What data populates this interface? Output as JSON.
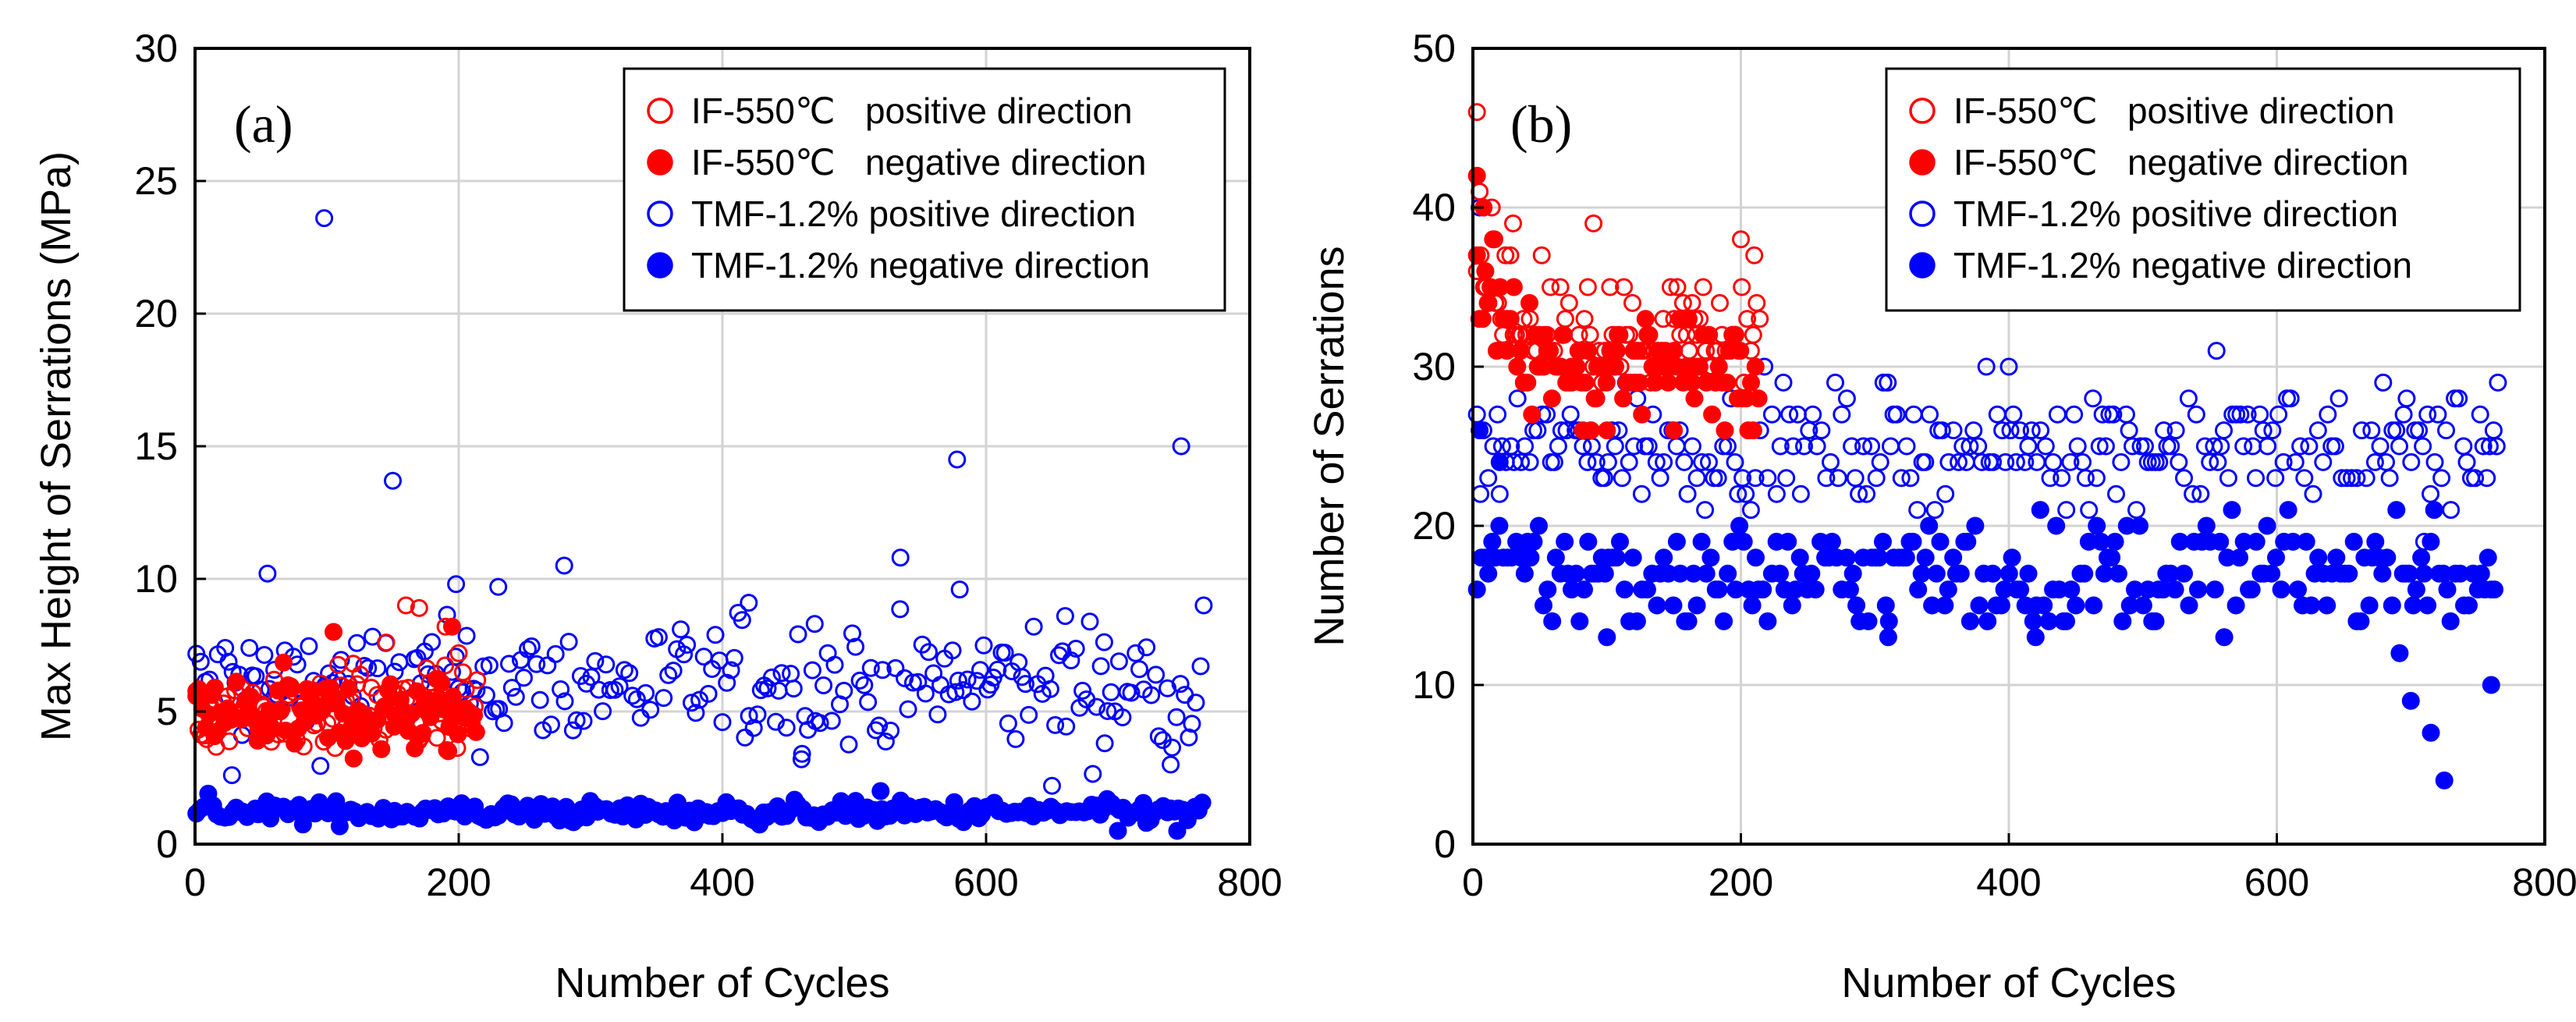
{
  "figure": {
    "panels": [
      "(a)",
      "(b)"
    ]
  },
  "legend_labels": [
    "IF-550℃   positive direction",
    "IF-550℃   negative direction",
    "TMF-1.2% positive direction",
    "TMF-1.2% negative direction"
  ],
  "colors": {
    "if": "#ff0000",
    "tmf": "#0000ff",
    "grid": "#d3d3d3",
    "axis": "#000000"
  },
  "chart_data": [
    {
      "type": "scatter",
      "panel_label": "(a)",
      "xlabel": "Number of Cycles",
      "ylabel": "Max Height of Serrations (MPa)",
      "xlim": [
        0,
        800
      ],
      "ylim": [
        0,
        30
      ],
      "xticks": [
        0,
        200,
        400,
        600,
        800
      ],
      "yticks": [
        0,
        5,
        10,
        15,
        20,
        25,
        30
      ],
      "grid": true,
      "legend_position": "top-right",
      "series": [
        {
          "name": "IF-550℃ positive direction",
          "marker": "open-circle",
          "color": "#ff0000",
          "x_range": [
            1,
            215
          ],
          "y_center": 5.0,
          "y_spread": 1.5,
          "highlights": [
            [
              145,
              7.6
            ],
            [
              160,
              9.0
            ],
            [
              170,
              8.9
            ],
            [
              190,
              8.2
            ],
            [
              200,
              7.2
            ],
            [
              60,
              6.2
            ],
            [
              120,
              6.8
            ]
          ]
        },
        {
          "name": "IF-550℃ negative direction",
          "marker": "filled-circle",
          "color": "#ff0000",
          "x_range": [
            1,
            215
          ],
          "y_center": 4.8,
          "y_spread": 1.5,
          "highlights": [
            [
              105,
              8.0
            ],
            [
              195,
              8.2
            ],
            [
              15,
              5.9
            ]
          ]
        },
        {
          "name": "TMF-1.2% positive direction",
          "marker": "open-circle",
          "color": "#0000ff",
          "x_range": [
            1,
            765
          ],
          "y_center": 6.0,
          "y_spread": 2.3,
          "highlights": [
            [
              98,
              23.6
            ],
            [
              150,
              13.7
            ],
            [
              578,
              14.5
            ],
            [
              748,
              15.0
            ],
            [
              55,
              10.2
            ],
            [
              280,
              10.5
            ],
            [
              535,
              10.8
            ],
            [
              580,
              9.6
            ],
            [
              765,
              9.0
            ],
            [
              420,
              9.1
            ],
            [
              198,
              9.8
            ],
            [
              230,
              9.7
            ],
            [
              470,
              8.3
            ],
            [
              660,
              8.6
            ],
            [
              28,
              2.6
            ],
            [
              460,
              3.2
            ],
            [
              740,
              3.0
            ],
            [
              650,
              2.2
            ],
            [
              690,
              3.8
            ]
          ]
        },
        {
          "name": "TMF-1.2% negative direction",
          "marker": "filled-circle",
          "color": "#0000ff",
          "x_range": [
            1,
            765
          ],
          "y_center": 1.2,
          "y_spread": 0.4,
          "highlights": [
            [
              10,
              1.9
            ],
            [
              520,
              2.0
            ],
            [
              700,
              0.5
            ],
            [
              745,
              0.5
            ]
          ]
        }
      ]
    },
    {
      "type": "scatter",
      "panel_label": "(b)",
      "xlabel": "Number of Cycles",
      "ylabel": "Number of Serrations",
      "xlim": [
        0,
        800
      ],
      "ylim": [
        0,
        50
      ],
      "xticks": [
        0,
        200,
        400,
        600,
        800
      ],
      "yticks": [
        0,
        10,
        20,
        30,
        40,
        50
      ],
      "grid": true,
      "legend_position": "top-right",
      "series": [
        {
          "name": "IF-550℃ positive direction",
          "marker": "open-circle",
          "color": "#ff0000",
          "x_range": [
            3,
            215
          ],
          "y_center": 32,
          "y_spread": 3.5,
          "highlights": [
            [
              3,
              46
            ],
            [
              5,
              41
            ],
            [
              15,
              38
            ],
            [
              30,
              39
            ],
            [
              90,
              39
            ],
            [
              200,
              38
            ],
            [
              210,
              37
            ]
          ]
        },
        {
          "name": "IF-550℃ negative direction",
          "marker": "filled-circle",
          "color": "#ff0000",
          "x_range": [
            3,
            215
          ],
          "y_center": 30,
          "y_spread": 3.5,
          "highlights": [
            [
              3,
              42
            ],
            [
              8,
              40
            ],
            [
              100,
              26
            ],
            [
              150,
              26
            ]
          ]
        },
        {
          "name": "TMF-1.2% positive direction",
          "marker": "open-circle",
          "color": "#0000ff",
          "x_range": [
            3,
            765
          ],
          "y_center": 25,
          "y_spread": 3.5,
          "highlights": [
            [
              5,
              40
            ],
            [
              555,
              31
            ],
            [
              765,
              29
            ],
            [
              710,
              19
            ],
            [
              400,
              30
            ],
            [
              20,
              22
            ]
          ]
        },
        {
          "name": "TMF-1.2% negative direction",
          "marker": "filled-circle",
          "color": "#0000ff",
          "x_range": [
            3,
            765
          ],
          "y_center": 17,
          "y_spread": 3.5,
          "highlights": [
            [
              5,
              26
            ],
            [
              20,
              24
            ],
            [
              725,
              4
            ],
            [
              715,
              7
            ],
            [
              700,
              9
            ],
            [
              760,
              10
            ],
            [
              100,
              13
            ],
            [
              310,
              13
            ],
            [
              420,
              13
            ]
          ]
        }
      ]
    }
  ]
}
